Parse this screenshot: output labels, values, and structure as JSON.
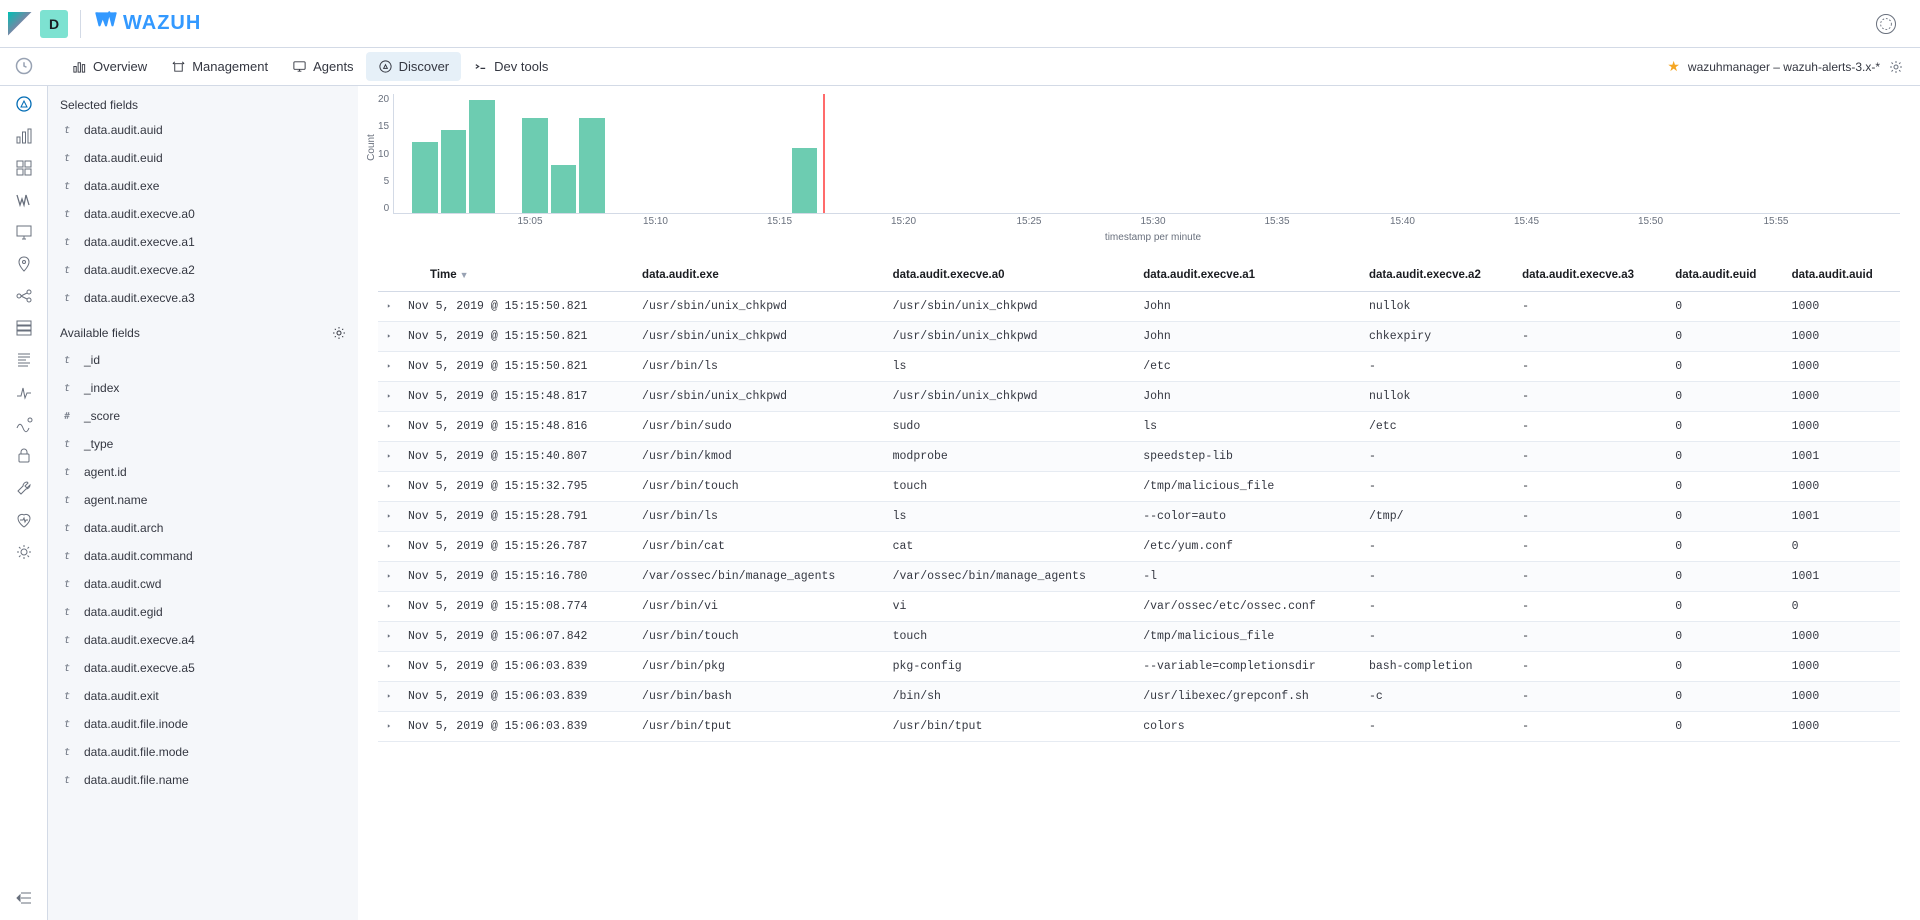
{
  "header": {
    "badge": "D",
    "brand": "WAZUH"
  },
  "nav": {
    "items": [
      {
        "label": "Overview"
      },
      {
        "label": "Management"
      },
      {
        "label": "Agents"
      },
      {
        "label": "Discover"
      },
      {
        "label": "Dev tools"
      }
    ],
    "pattern": "wazuhmanager – wazuh-alerts-3.x-*"
  },
  "fields": {
    "selected_heading": "Selected fields",
    "available_heading": "Available fields",
    "selected": [
      {
        "type": "t",
        "name": "data.audit.auid"
      },
      {
        "type": "t",
        "name": "data.audit.euid"
      },
      {
        "type": "t",
        "name": "data.audit.exe"
      },
      {
        "type": "t",
        "name": "data.audit.execve.a0"
      },
      {
        "type": "t",
        "name": "data.audit.execve.a1"
      },
      {
        "type": "t",
        "name": "data.audit.execve.a2"
      },
      {
        "type": "t",
        "name": "data.audit.execve.a3"
      }
    ],
    "available": [
      {
        "type": "t",
        "name": "_id"
      },
      {
        "type": "t",
        "name": "_index"
      },
      {
        "type": "#",
        "name": "_score"
      },
      {
        "type": "t",
        "name": "_type"
      },
      {
        "type": "t",
        "name": "agent.id"
      },
      {
        "type": "t",
        "name": "agent.name"
      },
      {
        "type": "t",
        "name": "data.audit.arch"
      },
      {
        "type": "t",
        "name": "data.audit.command"
      },
      {
        "type": "t",
        "name": "data.audit.cwd"
      },
      {
        "type": "t",
        "name": "data.audit.egid"
      },
      {
        "type": "t",
        "name": "data.audit.execve.a4"
      },
      {
        "type": "t",
        "name": "data.audit.execve.a5"
      },
      {
        "type": "t",
        "name": "data.audit.exit"
      },
      {
        "type": "t",
        "name": "data.audit.file.inode"
      },
      {
        "type": "t",
        "name": "data.audit.file.mode"
      },
      {
        "type": "t",
        "name": "data.audit.file.name"
      }
    ]
  },
  "chart": {
    "type": "bar",
    "y_label": "Count",
    "y_ticks": [
      "20",
      "15",
      "10",
      "5",
      "0"
    ],
    "ylim": [
      0,
      20
    ],
    "x_label": "timestamp per minute",
    "x_ticks": [
      {
        "label": "15:05",
        "pct": 8.3
      },
      {
        "label": "15:10",
        "pct": 16.7
      },
      {
        "label": "15:15",
        "pct": 25.0
      },
      {
        "label": "15:20",
        "pct": 33.3
      },
      {
        "label": "15:25",
        "pct": 41.7
      },
      {
        "label": "15:30",
        "pct": 50.0
      },
      {
        "label": "15:35",
        "pct": 58.3
      },
      {
        "label": "15:40",
        "pct": 66.7
      },
      {
        "label": "15:45",
        "pct": 75.0
      },
      {
        "label": "15:50",
        "pct": 83.3
      },
      {
        "label": "15:55",
        "pct": 91.7
      }
    ],
    "bars": [
      {
        "left_pct": 1.2,
        "value": 12
      },
      {
        "left_pct": 3.1,
        "value": 14
      },
      {
        "left_pct": 5.0,
        "value": 19
      },
      {
        "left_pct": 8.5,
        "value": 16
      },
      {
        "left_pct": 10.4,
        "value": 8
      },
      {
        "left_pct": 12.3,
        "value": 16
      },
      {
        "left_pct": 26.4,
        "value": 11
      }
    ],
    "bar_width_pct": 1.7,
    "bar_color": "#6dccb1",
    "marker_line_pct": 28.5,
    "marker_color": "#ff6b6b",
    "background_color": "#ffffff",
    "axis_color": "#d3dae6"
  },
  "table": {
    "columns": [
      "Time",
      "data.audit.exe",
      "data.audit.execve.a0",
      "data.audit.execve.a1",
      "data.audit.execve.a2",
      "data.audit.execve.a3",
      "data.audit.euid",
      "data.audit.auid"
    ],
    "rows": [
      [
        "Nov 5, 2019 @ 15:15:50.821",
        "/usr/sbin/unix_chkpwd",
        "/usr/sbin/unix_chkpwd",
        "John",
        "nullok",
        "-",
        "0",
        "1000"
      ],
      [
        "Nov 5, 2019 @ 15:15:50.821",
        "/usr/sbin/unix_chkpwd",
        "/usr/sbin/unix_chkpwd",
        "John",
        "chkexpiry",
        "-",
        "0",
        "1000"
      ],
      [
        "Nov 5, 2019 @ 15:15:50.821",
        "/usr/bin/ls",
        "ls",
        "/etc",
        "-",
        "-",
        "0",
        "1000"
      ],
      [
        "Nov 5, 2019 @ 15:15:48.817",
        "/usr/sbin/unix_chkpwd",
        "/usr/sbin/unix_chkpwd",
        "John",
        "nullok",
        "-",
        "0",
        "1000"
      ],
      [
        "Nov 5, 2019 @ 15:15:48.816",
        "/usr/bin/sudo",
        "sudo",
        "ls",
        "/etc",
        "-",
        "0",
        "1000"
      ],
      [
        "Nov 5, 2019 @ 15:15:40.807",
        "/usr/bin/kmod",
        "modprobe",
        "speedstep-lib",
        "-",
        "-",
        "0",
        "1001"
      ],
      [
        "Nov 5, 2019 @ 15:15:32.795",
        "/usr/bin/touch",
        "touch",
        "/tmp/malicious_file",
        "-",
        "-",
        "0",
        "1000"
      ],
      [
        "Nov 5, 2019 @ 15:15:28.791",
        "/usr/bin/ls",
        "ls",
        "--color=auto",
        "/tmp/",
        "-",
        "0",
        "1001"
      ],
      [
        "Nov 5, 2019 @ 15:15:26.787",
        "/usr/bin/cat",
        "cat",
        "/etc/yum.conf",
        "-",
        "-",
        "0",
        "0"
      ],
      [
        "Nov 5, 2019 @ 15:15:16.780",
        "/var/ossec/bin/manage_agents",
        "/var/ossec/bin/manage_agents",
        "-l",
        "-",
        "-",
        "0",
        "1001"
      ],
      [
        "Nov 5, 2019 @ 15:15:08.774",
        "/usr/bin/vi",
        "vi",
        "/var/ossec/etc/ossec.conf",
        "-",
        "-",
        "0",
        "0"
      ],
      [
        "Nov 5, 2019 @ 15:06:07.842",
        "/usr/bin/touch",
        "touch",
        "/tmp/malicious_file",
        "-",
        "-",
        "0",
        "1000"
      ],
      [
        "Nov 5, 2019 @ 15:06:03.839",
        "/usr/bin/pkg",
        "pkg-config",
        "--variable=completionsdir",
        "bash-completion",
        "-",
        "0",
        "1000"
      ],
      [
        "Nov 5, 2019 @ 15:06:03.839",
        "/usr/bin/bash",
        "/bin/sh",
        "/usr/libexec/grepconf.sh",
        "-c",
        "-",
        "0",
        "1000"
      ],
      [
        "Nov 5, 2019 @ 15:06:03.839",
        "/usr/bin/tput",
        "/usr/bin/tput",
        "colors",
        "-",
        "-",
        "0",
        "1000"
      ]
    ]
  }
}
